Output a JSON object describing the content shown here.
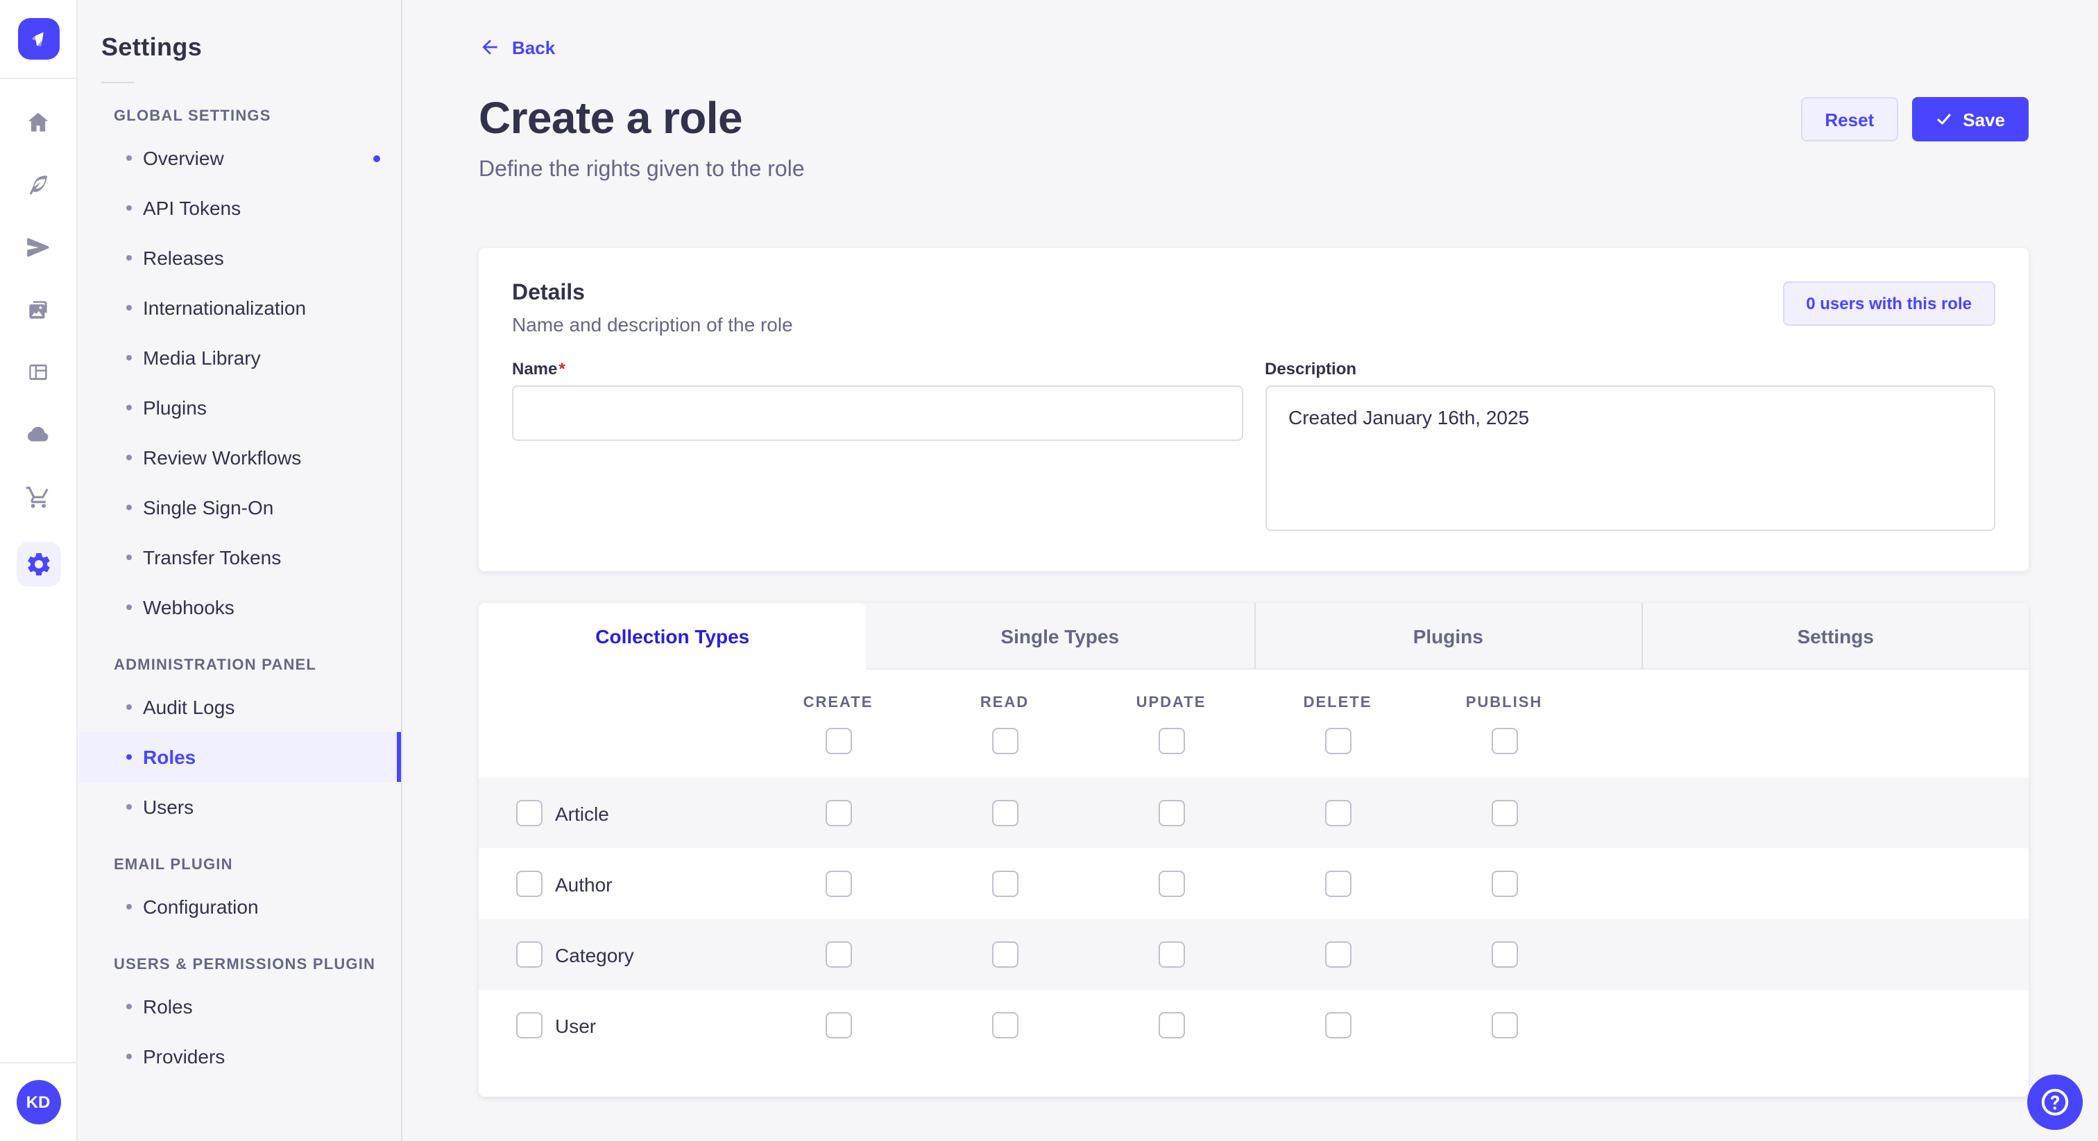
{
  "colors": {
    "primary": "#4945ff",
    "primary_dark": "#271fe0",
    "primary_light_bg": "#f0f0ff",
    "primary_light_border": "#d9d8ff",
    "text_dark": "#32324d",
    "text_muted": "#666687",
    "danger": "#d02b20",
    "page_bg": "#f6f6f9"
  },
  "rail": {
    "logo_icon": "strapi-logo",
    "icons": [
      "home",
      "content-manager",
      "releases",
      "media-library",
      "content-type-builder",
      "deploy",
      "marketplace",
      "settings"
    ],
    "active_icon": "settings",
    "avatar_initials": "KD"
  },
  "sidebar": {
    "title": "Settings",
    "sections": [
      {
        "label": "GLOBAL SETTINGS",
        "items": [
          {
            "label": "Overview",
            "notification": true
          },
          {
            "label": "API Tokens"
          },
          {
            "label": "Releases"
          },
          {
            "label": "Internationalization"
          },
          {
            "label": "Media Library"
          },
          {
            "label": "Plugins"
          },
          {
            "label": "Review Workflows"
          },
          {
            "label": "Single Sign-On"
          },
          {
            "label": "Transfer Tokens"
          },
          {
            "label": "Webhooks"
          }
        ]
      },
      {
        "label": "ADMINISTRATION PANEL",
        "items": [
          {
            "label": "Audit Logs"
          },
          {
            "label": "Roles",
            "active": true
          },
          {
            "label": "Users"
          }
        ]
      },
      {
        "label": "EMAIL PLUGIN",
        "items": [
          {
            "label": "Configuration"
          }
        ]
      },
      {
        "label": "USERS & PERMISSIONS PLUGIN",
        "items": [
          {
            "label": "Roles"
          },
          {
            "label": "Providers"
          }
        ]
      }
    ]
  },
  "header": {
    "back_label": "Back",
    "back_icon": "arrow-left",
    "title": "Create a role",
    "subtitle": "Define the rights given to the role",
    "reset_label": "Reset",
    "save_label": "Save",
    "save_icon": "check"
  },
  "details": {
    "title": "Details",
    "subtitle": "Name and description of the role",
    "users_pill_label": "0 users with this role",
    "name_label": "Name",
    "name_required_mark": "*",
    "name_value": "",
    "name_placeholder": "",
    "description_label": "Description",
    "description_value": "Created January 16th, 2025"
  },
  "permissions": {
    "tabs": [
      {
        "label": "Collection Types",
        "active": true
      },
      {
        "label": "Single Types"
      },
      {
        "label": "Plugins"
      },
      {
        "label": "Settings"
      }
    ],
    "columns": [
      "CREATE",
      "READ",
      "UPDATE",
      "DELETE",
      "PUBLISH"
    ],
    "rows": [
      {
        "label": "Article",
        "checked": [
          false,
          false,
          false,
          false,
          false
        ]
      },
      {
        "label": "Author",
        "checked": [
          false,
          false,
          false,
          false,
          false
        ]
      },
      {
        "label": "Category",
        "checked": [
          false,
          false,
          false,
          false,
          false
        ]
      },
      {
        "label": "User",
        "checked": [
          false,
          false,
          false,
          false,
          false
        ]
      }
    ]
  },
  "help": {
    "icon": "question-circle"
  }
}
